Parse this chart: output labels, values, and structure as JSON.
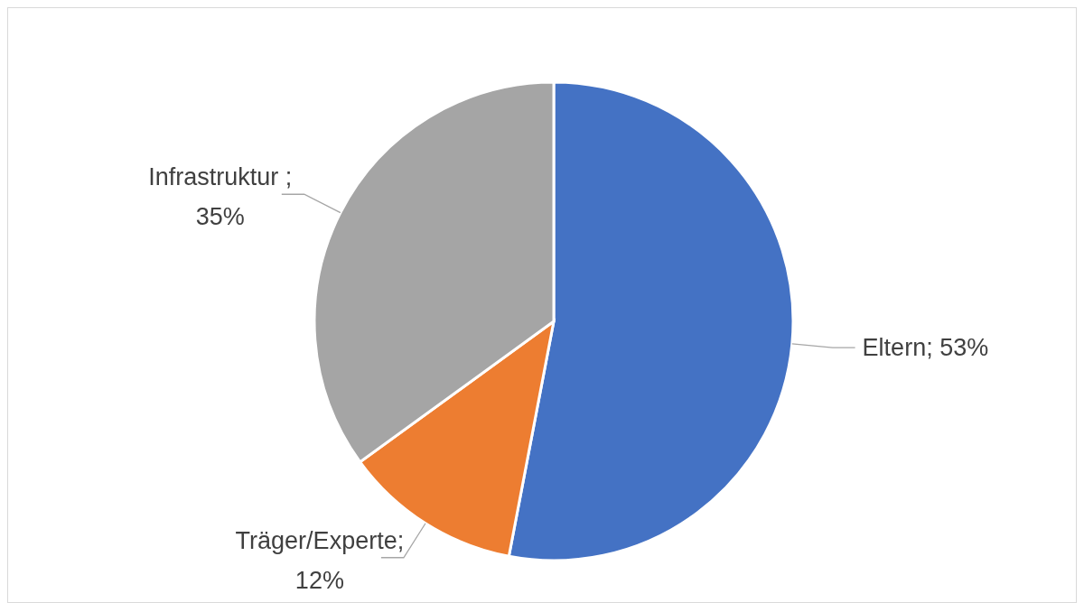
{
  "chart_data": {
    "type": "pie",
    "categories": [
      "Eltern",
      "Träger/Experte",
      "Infrastruktur"
    ],
    "values": [
      53,
      12,
      35
    ],
    "colors": [
      "#4472c4",
      "#ed7d31",
      "#a5a5a5"
    ],
    "value_labels": [
      "; 53%",
      "; 12%",
      " ; 35%"
    ],
    "legend": false
  }
}
